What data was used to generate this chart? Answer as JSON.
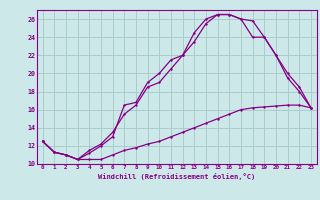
{
  "xlabel": "Windchill (Refroidissement éolien,°C)",
  "background_color": "#cce8e8",
  "grid_color": "#aacccc",
  "line_color": "#880088",
  "xlim": [
    -0.5,
    23.5
  ],
  "ylim": [
    10,
    27
  ],
  "xticks": [
    0,
    1,
    2,
    3,
    4,
    5,
    6,
    7,
    8,
    9,
    10,
    11,
    12,
    13,
    14,
    15,
    16,
    17,
    18,
    19,
    20,
    21,
    22,
    23
  ],
  "yticks": [
    10,
    12,
    14,
    16,
    18,
    20,
    22,
    24,
    26
  ],
  "line1_x": [
    0,
    1,
    2,
    3,
    4,
    5,
    6,
    7,
    8,
    9,
    10,
    11,
    12,
    13,
    14,
    15,
    16,
    17,
    18,
    19,
    20,
    21,
    22,
    23
  ],
  "line1_y": [
    12.5,
    11.3,
    11.0,
    10.5,
    10.5,
    10.5,
    11.0,
    11.5,
    11.8,
    12.2,
    12.5,
    13.0,
    13.5,
    14.0,
    14.5,
    15.0,
    15.5,
    16.0,
    16.2,
    16.3,
    16.4,
    16.5,
    16.5,
    16.2
  ],
  "line2_x": [
    0,
    1,
    2,
    3,
    4,
    5,
    6,
    7,
    8,
    9,
    10,
    11,
    12,
    13,
    14,
    15,
    16,
    17,
    18,
    19,
    20,
    21,
    22,
    23
  ],
  "line2_y": [
    12.5,
    11.3,
    11.0,
    10.5,
    11.5,
    12.2,
    13.5,
    15.5,
    16.5,
    18.5,
    19.0,
    20.5,
    22.0,
    23.5,
    25.5,
    26.5,
    26.5,
    26.0,
    25.8,
    24.0,
    22.0,
    20.0,
    18.5,
    16.2
  ],
  "line3_x": [
    0,
    1,
    2,
    3,
    4,
    5,
    6,
    7,
    8,
    9,
    10,
    11,
    12,
    13,
    14,
    15,
    16,
    17,
    18,
    19,
    20,
    21,
    22,
    23
  ],
  "line3_y": [
    12.5,
    11.3,
    11.0,
    10.5,
    11.2,
    12.0,
    13.0,
    16.5,
    16.8,
    19.0,
    20.0,
    21.5,
    22.0,
    24.5,
    26.0,
    26.5,
    26.5,
    26.0,
    24.0,
    24.0,
    22.0,
    19.5,
    18.0,
    16.2
  ]
}
